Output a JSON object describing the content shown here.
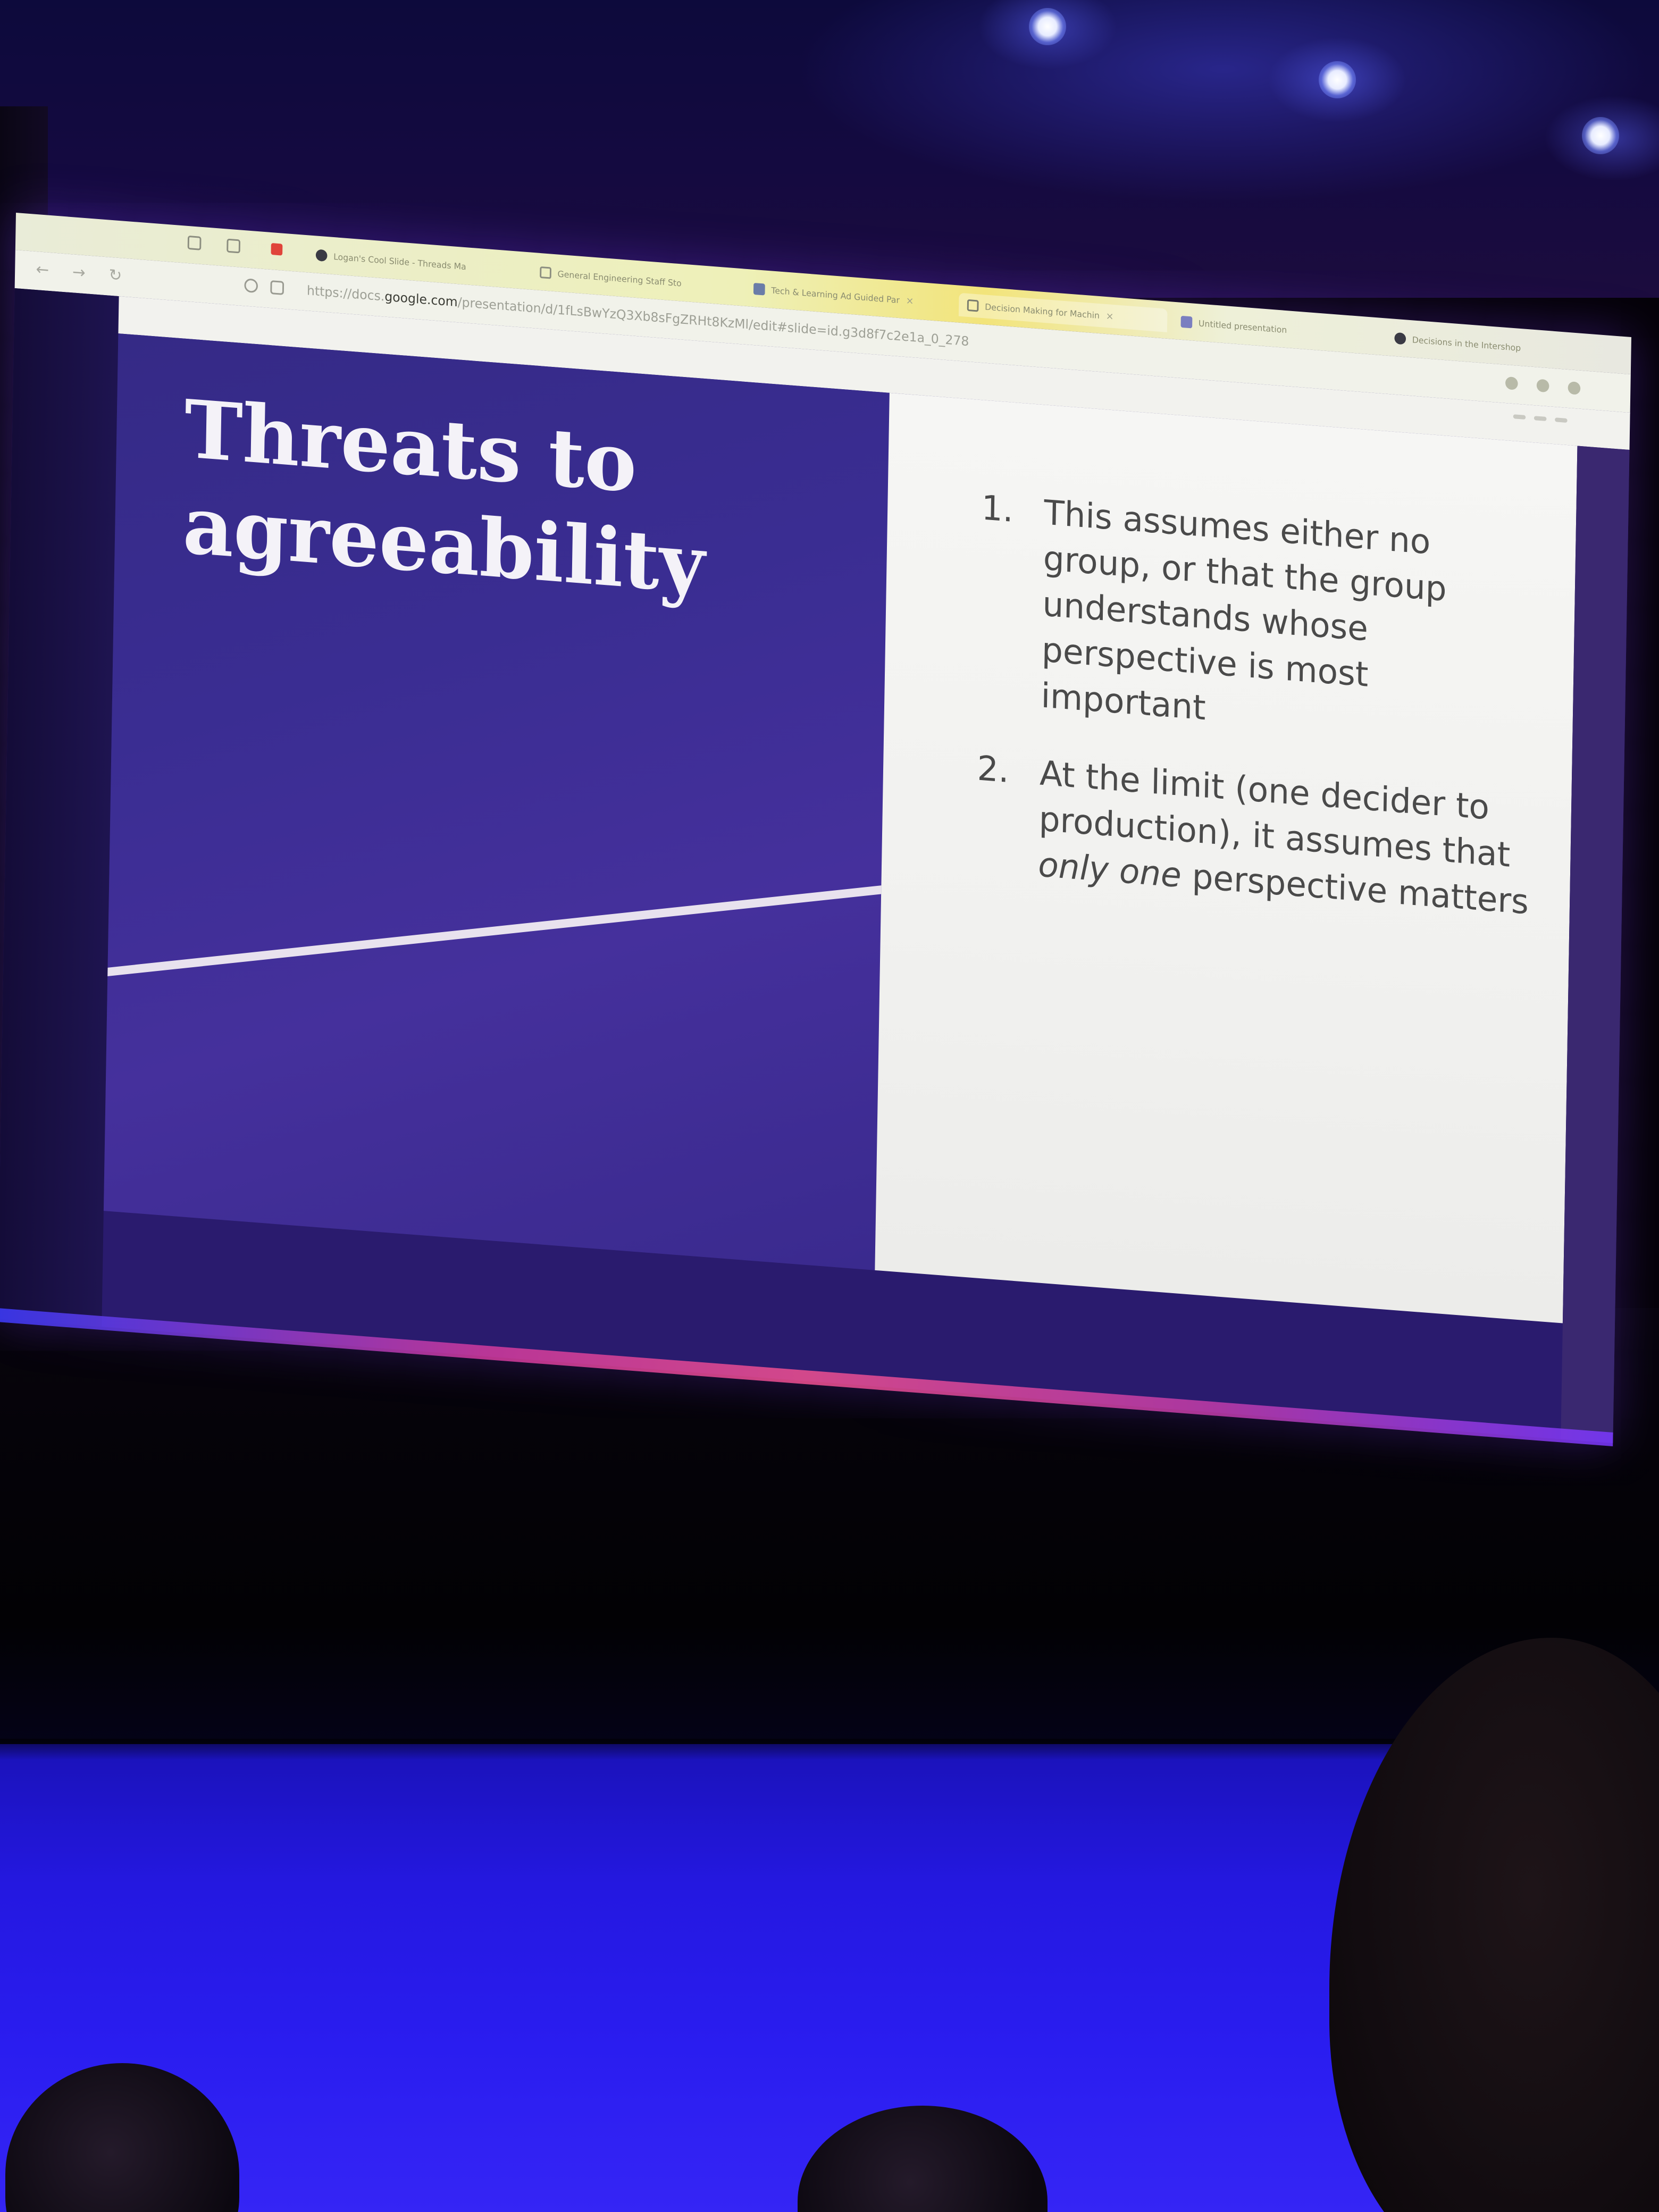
{
  "browser": {
    "tabs": [
      {
        "label": "Logan's Cool Slide - Threads Ma",
        "icon": "globe-icon"
      },
      {
        "label": "General Engineering Staff Sto",
        "icon": "doc-icon"
      },
      {
        "label": "Tech & Learning Ad Guided Par",
        "icon": "doc-icon"
      },
      {
        "label": "Decision Making for Machin",
        "icon": "slides-icon"
      },
      {
        "label": "Untitled presentation",
        "icon": "slides-icon"
      },
      {
        "label": "Decisions in the Intershop",
        "icon": "doc-icon"
      }
    ],
    "url_prefix": "https://docs.",
    "url_host": "google.com",
    "url_path": "/presentation/d/1fLsBwYzQ3Xb8sFgZRHt8KzMl/edit#slide=id.g3d8f7c2e1a_0_278"
  },
  "slide": {
    "title_lines": [
      "Threats to",
      "agreeability"
    ],
    "items": [
      {
        "number": "1.",
        "text": "This assumes either no group, or that the group understands whose perspective is most important"
      },
      {
        "number": "2.",
        "text_before": "At the limit (one decider to production), it assumes that ",
        "text_emphasis": "only one",
        "text_after": " perspective matters"
      }
    ]
  },
  "colors": {
    "slide_left_background": "#3a2d92",
    "slide_right_background": "#f4f4f2",
    "title_color": "#f4f2f8",
    "body_text_color": "#4a4a4a",
    "stage_floor": "#2a1df0",
    "browser_tabbar_accent": "#f2e47a"
  }
}
